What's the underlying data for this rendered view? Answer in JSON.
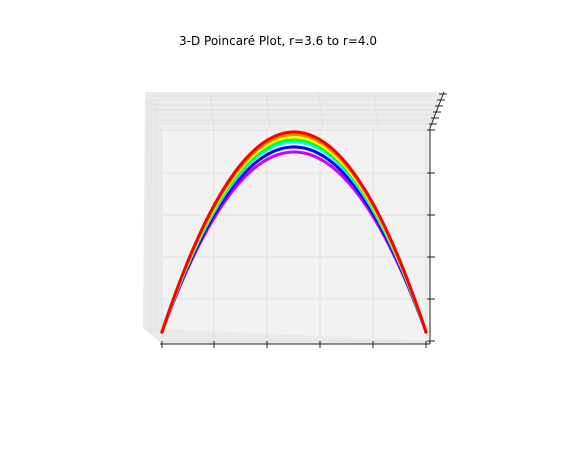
{
  "chart_data": {
    "type": "scatter",
    "projection": "3d",
    "title": "3-D Poincaré Plot, r=3.6 to r=4.0",
    "xlabel": "",
    "ylabel": "",
    "zlabel": "",
    "xlim": [
      0,
      1
    ],
    "ylim": [
      0,
      1
    ],
    "zlim": [
      0,
      1
    ],
    "grid": true,
    "legend": "none",
    "r_range": [
      3.6,
      4.0
    ],
    "colormap": "hsv",
    "series": [
      {
        "color": "#cc00ff",
        "values": [
          [
            0.0,
            0.0
          ],
          [
            0.1,
            0.324
          ],
          [
            0.2,
            0.576
          ],
          [
            0.3,
            0.756
          ],
          [
            0.4,
            0.864
          ],
          [
            0.5,
            0.9
          ],
          [
            0.6,
            0.864
          ],
          [
            0.7,
            0.756
          ],
          [
            0.8,
            0.576
          ],
          [
            0.9,
            0.324
          ],
          [
            1.0,
            0.0
          ]
        ]
      },
      {
        "color": "#0000ff",
        "values": [
          [
            0.0,
            0.0
          ],
          [
            0.1,
            0.333
          ],
          [
            0.2,
            0.592
          ],
          [
            0.3,
            0.777
          ],
          [
            0.4,
            0.888
          ],
          [
            0.5,
            0.925
          ],
          [
            0.6,
            0.888
          ],
          [
            0.7,
            0.777
          ],
          [
            0.8,
            0.592
          ],
          [
            0.9,
            0.333
          ],
          [
            1.0,
            0.0
          ]
        ]
      },
      {
        "color": "#00ffff",
        "values": [
          [
            0.0,
            0.0
          ],
          [
            0.1,
            0.342
          ],
          [
            0.2,
            0.608
          ],
          [
            0.3,
            0.798
          ],
          [
            0.4,
            0.912
          ],
          [
            0.5,
            0.95
          ],
          [
            0.6,
            0.912
          ],
          [
            0.7,
            0.798
          ],
          [
            0.8,
            0.608
          ],
          [
            0.9,
            0.342
          ],
          [
            1.0,
            0.0
          ]
        ]
      },
      {
        "color": "#00ff00",
        "values": [
          [
            0.0,
            0.0
          ],
          [
            0.1,
            0.347
          ],
          [
            0.2,
            0.616
          ],
          [
            0.3,
            0.809
          ],
          [
            0.4,
            0.924
          ],
          [
            0.5,
            0.963
          ],
          [
            0.6,
            0.924
          ],
          [
            0.7,
            0.809
          ],
          [
            0.8,
            0.616
          ],
          [
            0.9,
            0.347
          ],
          [
            1.0,
            0.0
          ]
        ]
      },
      {
        "color": "#ffff00",
        "values": [
          [
            0.0,
            0.0
          ],
          [
            0.1,
            0.351
          ],
          [
            0.2,
            0.624
          ],
          [
            0.3,
            0.819
          ],
          [
            0.4,
            0.936
          ],
          [
            0.5,
            0.975
          ],
          [
            0.6,
            0.936
          ],
          [
            0.7,
            0.819
          ],
          [
            0.8,
            0.624
          ],
          [
            0.9,
            0.351
          ],
          [
            1.0,
            0.0
          ]
        ]
      },
      {
        "color": "#ff8000",
        "values": [
          [
            0.0,
            0.0
          ],
          [
            0.1,
            0.355
          ],
          [
            0.2,
            0.632
          ],
          [
            0.3,
            0.83
          ],
          [
            0.4,
            0.948
          ],
          [
            0.5,
            0.988
          ],
          [
            0.6,
            0.948
          ],
          [
            0.7,
            0.83
          ],
          [
            0.8,
            0.632
          ],
          [
            0.9,
            0.355
          ],
          [
            1.0,
            0.0
          ]
        ]
      },
      {
        "color": "#ff0000",
        "values": [
          [
            0.0,
            0.0
          ],
          [
            0.1,
            0.36
          ],
          [
            0.2,
            0.64
          ],
          [
            0.3,
            0.84
          ],
          [
            0.4,
            0.96
          ],
          [
            0.5,
            1.0
          ],
          [
            0.6,
            0.96
          ],
          [
            0.7,
            0.84
          ],
          [
            0.8,
            0.64
          ],
          [
            0.9,
            0.36
          ],
          [
            1.0,
            0.0
          ]
        ]
      }
    ]
  }
}
